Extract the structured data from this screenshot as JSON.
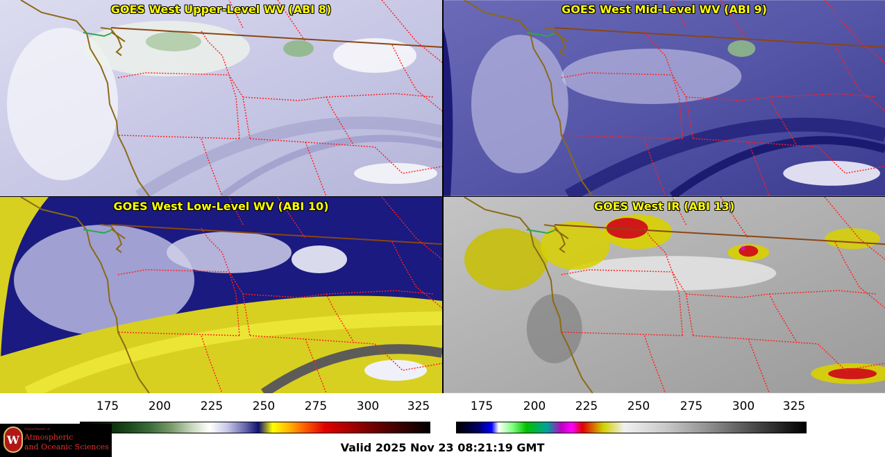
{
  "panels": {
    "upper": {
      "title": "GOES West Upper-Level WV (ABI 8)"
    },
    "mid": {
      "title": "GOES West Mid-Level WV (ABI 9)"
    },
    "low": {
      "title": "GOES West Low-Level WV (ABI 10)"
    },
    "ir": {
      "title": "GOES West IR (ABI 13)"
    }
  },
  "colorbars": {
    "left": {
      "ticks": [
        "175",
        "200",
        "225",
        "250",
        "275",
        "300",
        "325"
      ],
      "values": [
        175,
        200,
        225,
        250,
        275,
        300,
        325
      ],
      "range": [
        163,
        332
      ]
    },
    "right": {
      "ticks": [
        "175",
        "200",
        "225",
        "250",
        "275",
        "300",
        "325"
      ],
      "values": [
        175,
        200,
        225,
        250,
        275,
        300,
        325
      ],
      "range": [
        163,
        332
      ]
    }
  },
  "logo": {
    "line1": "Department of",
    "line2": "Atmospheric",
    "line3": "and Oceanic Sciences",
    "seal_letter": "W"
  },
  "footer": {
    "valid": "Valid 2025 Nov 23 08:21:19 GMT"
  },
  "colors": {
    "title": "#ffff00",
    "state_borders": "#ff2020",
    "coast": "#8b6914"
  }
}
